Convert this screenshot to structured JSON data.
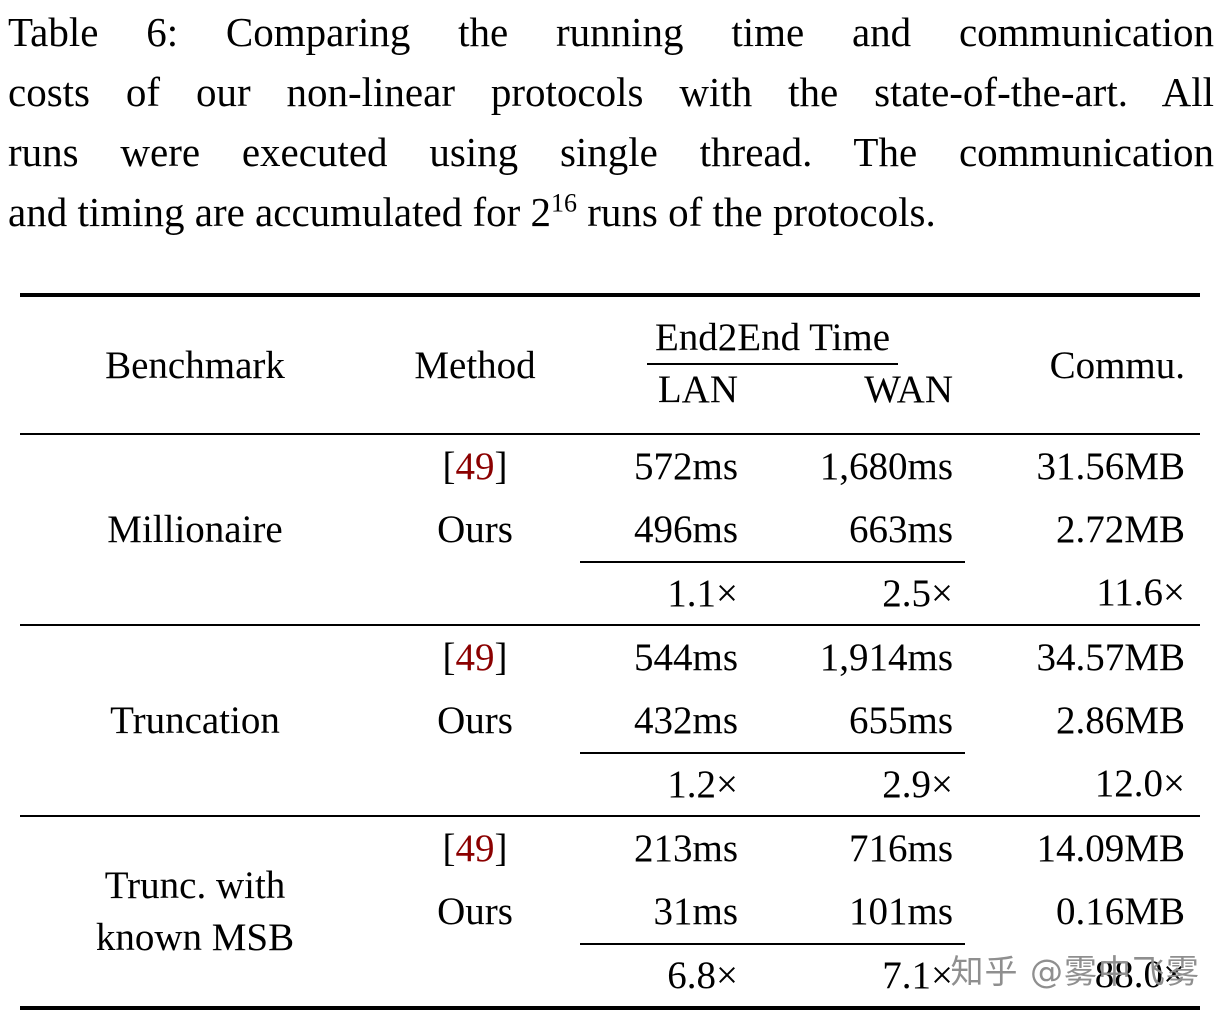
{
  "colors": {
    "citation": "#8b0000",
    "watermark": "#8f8f8f",
    "text": "#000000",
    "background": "#ffffff"
  },
  "caption": {
    "line1": "Table 6: Comparing the running time and communication",
    "line2": "costs of our non-linear protocols with the state-of-the-art. All",
    "line3": "runs were executed using single thread. The communication",
    "line4_pre": "and timing are accumulated for 2",
    "line4_sup": "16",
    "line4_post": " runs of the protocols."
  },
  "table": {
    "cite_open": "[",
    "cite_close": "]",
    "headers": {
      "benchmark": "Benchmark",
      "method": "Method",
      "end2end": "End2End Time",
      "lan": "LAN",
      "wan": "WAN",
      "commu": "Commu."
    },
    "groups": [
      {
        "benchmark_line1": "Millionaire",
        "benchmark_line2": "",
        "rows": [
          {
            "cite": "49",
            "lan": "572ms",
            "wan": "1,680ms",
            "commu": "31.56MB"
          },
          {
            "method": "Ours",
            "lan": "496ms",
            "wan": "663ms",
            "commu": "2.72MB"
          }
        ],
        "speedup": {
          "lan": "1.1×",
          "wan": "2.5×",
          "commu": "11.6×"
        }
      },
      {
        "benchmark_line1": "Truncation",
        "benchmark_line2": "",
        "rows": [
          {
            "cite": "49",
            "lan": "544ms",
            "wan": "1,914ms",
            "commu": "34.57MB"
          },
          {
            "method": "Ours",
            "lan": "432ms",
            "wan": "655ms",
            "commu": "2.86MB"
          }
        ],
        "speedup": {
          "lan": "1.2×",
          "wan": "2.9×",
          "commu": "12.0×"
        }
      },
      {
        "benchmark_line1": "Trunc. with",
        "benchmark_line2": "known MSB",
        "rows": [
          {
            "cite": "49",
            "lan": "213ms",
            "wan": "716ms",
            "commu": "14.09MB"
          },
          {
            "method": "Ours",
            "lan": "31ms",
            "wan": "101ms",
            "commu": "0.16MB"
          }
        ],
        "speedup": {
          "lan": "6.8×",
          "wan": "7.1×",
          "commu": "88.0×"
        }
      }
    ]
  },
  "watermark": "知乎 @雾中飞雾"
}
